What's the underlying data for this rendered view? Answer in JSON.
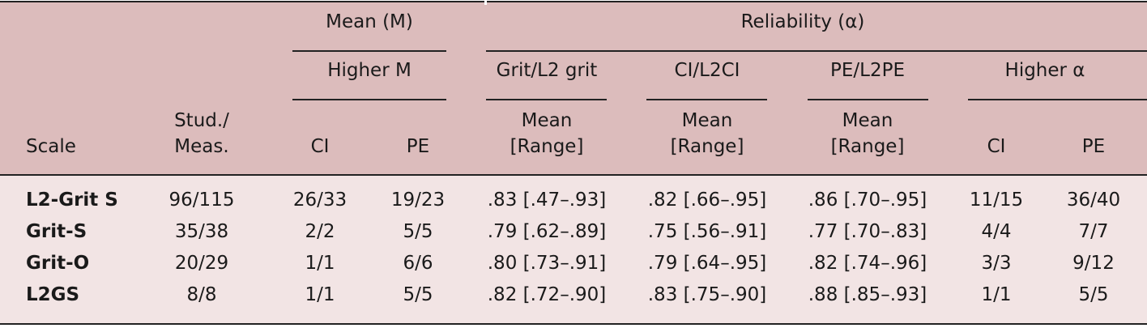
{
  "header": {
    "group_mean": "Mean (M)",
    "group_reliability": "Reliability (α)",
    "higher_m": "Higher M",
    "grit_l2grit": "Grit/L2 grit",
    "ci_l2ci": "CI/L2CI",
    "pe_l2pe": "PE/L2PE",
    "higher_alpha": "Higher α",
    "scale": "Scale",
    "stud_meas_1": "Stud./",
    "stud_meas_2": "Meas.",
    "ci": "CI",
    "pe": "PE",
    "mean": "Mean",
    "range": "[Range]"
  },
  "rows": [
    {
      "scale": "L2-Grit S",
      "stud": "96/115",
      "m_ci": "26/33",
      "m_pe": "19/23",
      "grit": ".83 [.47–.93]",
      "ci": ".82 [.66–.95]",
      "pe": ".86 [.70–.95]",
      "a_ci": "11/15",
      "a_pe": "36/40"
    },
    {
      "scale": "Grit-S",
      "stud": "35/38",
      "m_ci": "2/2",
      "m_pe": "5/5",
      "grit": ".79 [.62–.89]",
      "ci": ".75 [.56–.91]",
      "pe": ".77 [.70–.83]",
      "a_ci": "4/4",
      "a_pe": "7/7"
    },
    {
      "scale": "Grit-O",
      "stud": "20/29",
      "m_ci": "1/1",
      "m_pe": "6/6",
      "grit": ".80 [.73–.91]",
      "ci": ".79 [.64–.95]",
      "pe": ".82 [.74–.96]",
      "a_ci": "3/3",
      "a_pe": "9/12"
    },
    {
      "scale": "L2GS",
      "stud": "8/8",
      "m_ci": "1/1",
      "m_pe": "5/5",
      "grit": ".82 [.72–.90]",
      "ci": ".83 [.75–.90]",
      "pe": ".88 [.85–.93]",
      "a_ci": "1/1",
      "a_pe": "5/5"
    }
  ]
}
